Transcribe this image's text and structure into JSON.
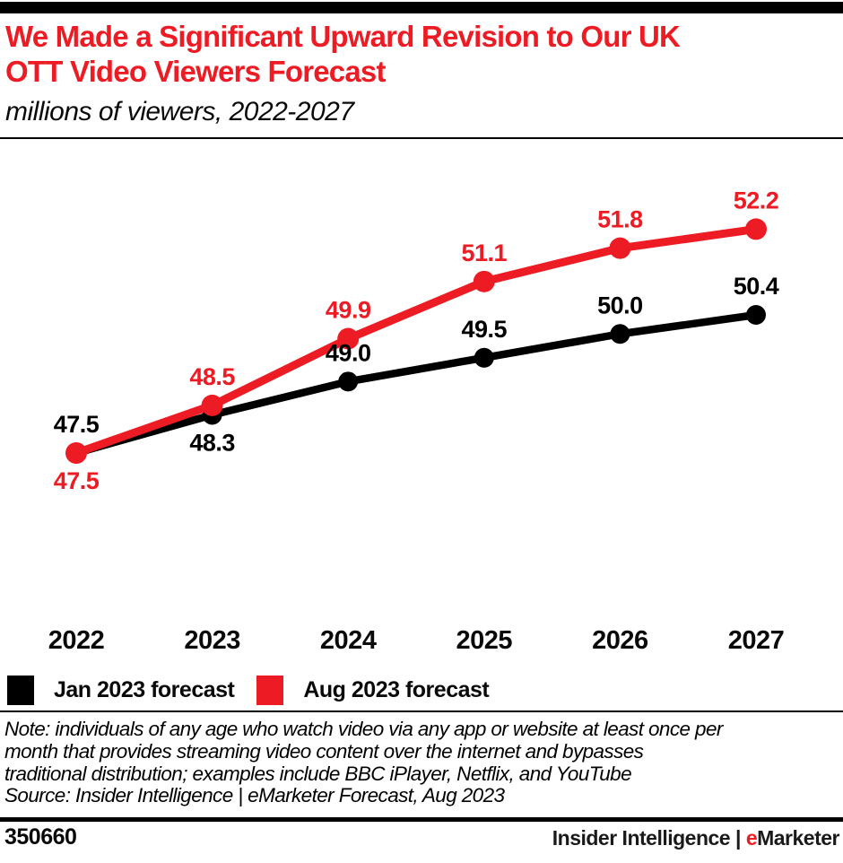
{
  "colors": {
    "accent_red": "#ED1C24",
    "line_black": "#000000",
    "background": "#ffffff"
  },
  "header": {
    "title_lines": [
      "We Made a Significant Upward Revision to Our UK",
      "OTT Video Viewers Forecast"
    ],
    "subtitle": "millions of viewers, 2022-2027"
  },
  "chart_data": {
    "type": "line",
    "title": "We Made a Significant Upward Revision to Our UK OTT Video Viewers Forecast",
    "subtitle": "millions of viewers, 2022-2027",
    "categories": [
      "2022",
      "2023",
      "2024",
      "2025",
      "2026",
      "2027"
    ],
    "series": [
      {
        "name": "Jan 2023 forecast",
        "color": "#000000",
        "values": [
          47.5,
          48.3,
          49.0,
          49.5,
          50.0,
          50.4
        ],
        "label_side": [
          "above",
          "below",
          "above",
          "above",
          "above",
          "above"
        ]
      },
      {
        "name": "Aug 2023 forecast",
        "color": "#ED1C24",
        "values": [
          47.5,
          48.5,
          49.9,
          51.1,
          51.8,
          52.2
        ],
        "label_side": [
          "below",
          "above",
          "above",
          "above",
          "above",
          "above"
        ]
      }
    ],
    "ylim": [
      47.0,
      53.0
    ],
    "grid": false,
    "axes_drawn": false,
    "data_labels": true,
    "legend_position": "bottom"
  },
  "legend": {
    "items": [
      {
        "label": "Jan 2023 forecast",
        "color": "#000000"
      },
      {
        "label": "Aug 2023 forecast",
        "color": "#ED1C24"
      }
    ]
  },
  "note": {
    "lines": [
      "Note: individuals of any age who watch video via any app or website at least once per",
      "month that provides streaming video content over the internet and bypasses",
      "traditional distribution; examples include BBC iPlayer, Netflix, and YouTube",
      "Source: Insider Intelligence | eMarketer Forecast, Aug 2023"
    ]
  },
  "footer": {
    "chart_id": "350660",
    "brand_left": "Insider Intelligence",
    "separator": "|",
    "brand_e": "e",
    "brand_rest": "Marketer"
  }
}
